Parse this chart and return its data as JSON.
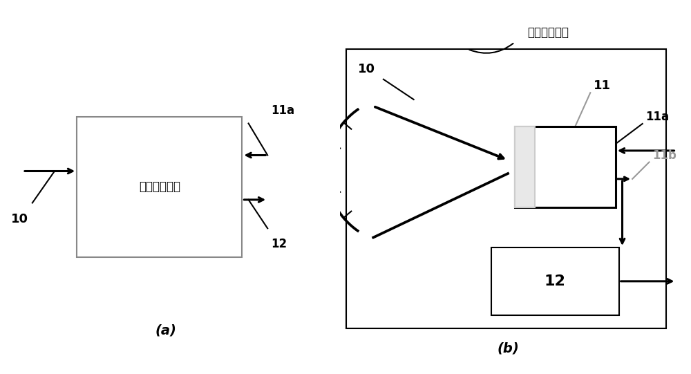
{
  "bg_color": "#ffffff",
  "line_color": "#000000",
  "gray_color": "#999999",
  "text_box_a": "光源记录单元",
  "label_guangyuan": "光源记录单元",
  "label_a": "(a)",
  "label_b": "(b)",
  "label_10a": "10",
  "label_11a_a": "11a",
  "label_12a": "12",
  "label_10b": "10",
  "label_11b": "11",
  "label_11a_b": "11a",
  "label_11bb": "11b",
  "label_12b": "12"
}
